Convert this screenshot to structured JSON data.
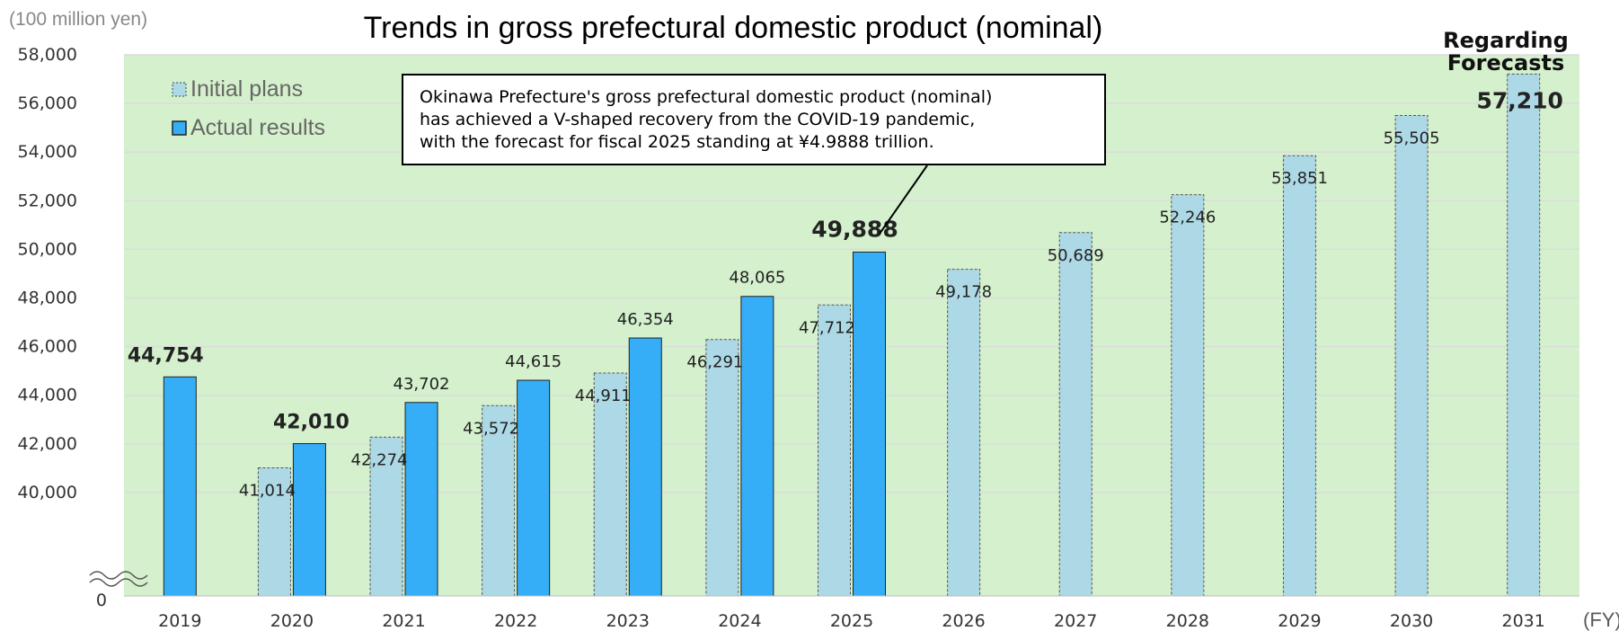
{
  "chart_data": {
    "type": "bar",
    "title": "Trends in gross prefectural domestic product (nominal)",
    "unit_label": "(100 million yen)",
    "xlabel": "(FY)",
    "ylabel": "",
    "ylim": [
      38000,
      58000
    ],
    "y_ticks": [
      "58,000",
      "56,000",
      "54,000",
      "52,000",
      "50,000",
      "48,000",
      "46,000",
      "44,000",
      "42,000",
      "40,000"
    ],
    "y_zero_label": "0",
    "axis_break": true,
    "grid": true,
    "legend_position": "top-left",
    "categories": [
      "2019",
      "2020",
      "2021",
      "2022",
      "2023",
      "2024",
      "2025",
      "2026",
      "2027",
      "2028",
      "2029",
      "2030",
      "2031"
    ],
    "series": [
      {
        "name": "Initial plans",
        "color": "#add8e6",
        "style": "dashed-border",
        "values": [
          null,
          41014,
          42274,
          43572,
          44911,
          46291,
          47712,
          49178,
          50689,
          52246,
          53851,
          55505,
          57210
        ],
        "labels": [
          null,
          "41,014",
          "42,274",
          "43,572",
          "44,911",
          "46,291",
          "47,712",
          "49,178",
          "50,689",
          "52,246",
          "53,851",
          "55,505",
          "57,210"
        ]
      },
      {
        "name": "Actual results",
        "color": "#35aef7",
        "style": "solid",
        "values": [
          44754,
          42010,
          43702,
          44615,
          46354,
          48065,
          49888,
          null,
          null,
          null,
          null,
          null,
          null
        ],
        "labels": [
          "44,754",
          "42,010",
          "43,702",
          "44,615",
          "46,354",
          "48,065",
          "49,888",
          null,
          null,
          null,
          null,
          null,
          null
        ]
      }
    ],
    "bold_labels": [
      "44,754",
      "42,010",
      "49,888",
      "57,210"
    ],
    "annotations": {
      "callout_lines": [
        "Okinawa Prefecture's gross prefectural domestic product (nominal)",
        "has achieved a V-shaped recovery from the COVID-19 pandemic,",
        "with the forecast for fiscal 2025 standing at ¥4.9888 trillion."
      ],
      "forecast_note": [
        "Regarding",
        "Forecasts"
      ]
    },
    "colors": {
      "plot_background": "#d4f0cc",
      "grid": "#dcdcdc",
      "axis_text": "#595959"
    }
  }
}
